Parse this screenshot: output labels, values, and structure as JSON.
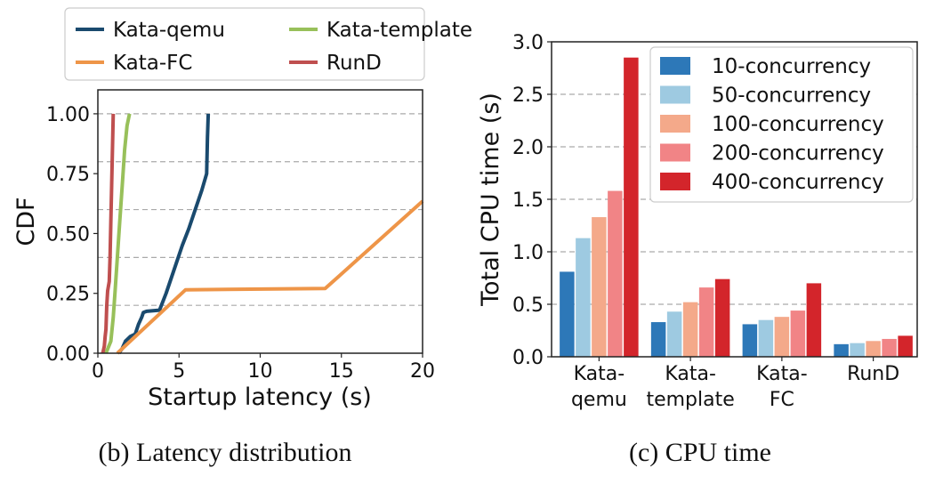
{
  "chart_data": [
    {
      "type": "line",
      "caption": "(b) Latency distribution",
      "xlabel": "Startup latency (s)",
      "ylabel": "CDF",
      "xlim": [
        0,
        20
      ],
      "ylim": [
        0,
        1.1
      ],
      "xticks": [
        "0",
        "5",
        "10",
        "15",
        "20"
      ],
      "xtick_values": [
        0,
        5,
        10,
        15,
        20
      ],
      "yticks": [
        "0.00",
        "0.25",
        "0.50",
        "0.75",
        "1.00"
      ],
      "ytick_values": [
        0,
        0.25,
        0.5,
        0.75,
        1.0
      ],
      "grid": "horizontal dashed",
      "legend_position": "above plot",
      "series": [
        {
          "name": "Kata-qemu",
          "color": "#1a4a6e",
          "points": [
            [
              1.3,
              0
            ],
            [
              1.5,
              0.02
            ],
            [
              1.7,
              0.05
            ],
            [
              2.0,
              0.07
            ],
            [
              2.3,
              0.08
            ],
            [
              2.5,
              0.12
            ],
            [
              2.7,
              0.15
            ],
            [
              2.8,
              0.17
            ],
            [
              3.0,
              0.175
            ],
            [
              3.8,
              0.18
            ],
            [
              4.2,
              0.25
            ],
            [
              4.7,
              0.35
            ],
            [
              5.2,
              0.45
            ],
            [
              5.6,
              0.52
            ],
            [
              6.0,
              0.6
            ],
            [
              6.4,
              0.68
            ],
            [
              6.7,
              0.75
            ],
            [
              6.75,
              0.9
            ],
            [
              6.8,
              1.0
            ]
          ]
        },
        {
          "name": "Kata-template",
          "color": "#98c05a",
          "points": [
            [
              0.5,
              0
            ],
            [
              0.8,
              0.05
            ],
            [
              0.95,
              0.15
            ],
            [
              1.05,
              0.25
            ],
            [
              1.2,
              0.4
            ],
            [
              1.35,
              0.55
            ],
            [
              1.5,
              0.7
            ],
            [
              1.65,
              0.85
            ],
            [
              1.8,
              0.95
            ],
            [
              1.95,
              1.0
            ]
          ]
        },
        {
          "name": "Kata-FC",
          "color": "#ee9548",
          "points": [
            [
              1.2,
              0
            ],
            [
              5.4,
              0.265
            ],
            [
              14.0,
              0.27
            ],
            [
              20.0,
              0.635
            ]
          ]
        },
        {
          "name": "RunD",
          "color": "#bf4f4f",
          "points": [
            [
              0.3,
              0
            ],
            [
              0.4,
              0.03
            ],
            [
              0.45,
              0.07
            ],
            [
              0.5,
              0.1
            ],
            [
              0.55,
              0.2
            ],
            [
              0.6,
              0.26
            ],
            [
              0.7,
              0.3
            ],
            [
              0.75,
              0.4
            ],
            [
              0.8,
              0.55
            ],
            [
              0.85,
              0.7
            ],
            [
              0.9,
              0.85
            ],
            [
              0.95,
              1.0
            ]
          ]
        }
      ]
    },
    {
      "type": "bar",
      "caption": "(c) CPU time",
      "xlabel": "",
      "ylabel": "Total CPU time (s)",
      "ylim": [
        0,
        3.0
      ],
      "yticks": [
        "0.0",
        "0.5",
        "1.0",
        "1.5",
        "2.0",
        "2.5",
        "3.0"
      ],
      "ytick_values": [
        0,
        0.5,
        1.0,
        1.5,
        2.0,
        2.5,
        3.0
      ],
      "grid": "horizontal dashed",
      "legend_position": "top-right",
      "categories": [
        [
          "Kata-",
          "qemu"
        ],
        [
          "Kata-",
          "template"
        ],
        [
          "Kata-",
          "FC"
        ],
        [
          "RunD"
        ]
      ],
      "series": [
        {
          "name": "10-concurrency",
          "color": "#2d78b8",
          "values": [
            0.81,
            0.33,
            0.31,
            0.12
          ]
        },
        {
          "name": "50-concurrency",
          "color": "#9ecae1",
          "values": [
            1.13,
            0.43,
            0.35,
            0.13
          ]
        },
        {
          "name": "100-concurrency",
          "color": "#f4a98a",
          "values": [
            1.33,
            0.52,
            0.38,
            0.15
          ]
        },
        {
          "name": "200-concurrency",
          "color": "#f18486",
          "values": [
            1.58,
            0.66,
            0.44,
            0.17
          ]
        },
        {
          "name": "400-concurrency",
          "color": "#d3252b",
          "values": [
            2.85,
            0.74,
            0.7,
            0.2
          ]
        }
      ]
    }
  ]
}
